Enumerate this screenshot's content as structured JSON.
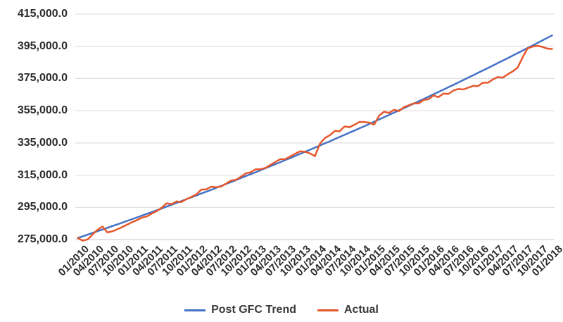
{
  "chart_data": {
    "type": "line",
    "title": "",
    "xlabel": "",
    "ylabel": "",
    "grid": {
      "horizontal": true,
      "color": "#D9D9D9",
      "axis_line_color": "#C6C6C6"
    },
    "legend": {
      "position": "bottom",
      "entries": [
        "Post GFC Trend",
        "Actual"
      ]
    },
    "y_axis": {
      "min": 275000,
      "max": 415000,
      "step": 20000,
      "tick_labels_top_down": [
        "415,000.0",
        "395,000.0",
        "375,000.0",
        "355,000.0",
        "335,000.0",
        "315,000.0",
        "295,000.0",
        "275,000.0"
      ]
    },
    "x_axis": {
      "months_per_tick": 3,
      "tick_labels": [
        "01/2010",
        "04/2010",
        "07/2010",
        "10/2010",
        "01/2011",
        "04/2011",
        "07/2011",
        "10/2011",
        "01/2012",
        "04/2012",
        "07/2012",
        "10/2012",
        "01/2013",
        "04/2013",
        "07/2013",
        "10/2013",
        "01/2014",
        "04/2014",
        "07/2014",
        "10/2014",
        "01/2015",
        "04/2015",
        "07/2015",
        "10/2015",
        "01/2016",
        "04/2016",
        "07/2016",
        "10/2016",
        "01/2017",
        "04/2017",
        "07/2017",
        "10/2017",
        "01/2018"
      ]
    },
    "series": [
      {
        "name": "Post GFC Trend",
        "color": "#4472C4",
        "stroke_width": 2.5,
        "values": [
          276000,
          277000,
          278100,
          279100,
          280200,
          281200,
          282300,
          283400,
          284400,
          285500,
          286600,
          287700,
          288800,
          289900,
          291000,
          292100,
          293200,
          294300,
          295500,
          296600,
          297800,
          298900,
          300100,
          301200,
          302400,
          303600,
          304700,
          305900,
          307100,
          308300,
          309500,
          310700,
          311900,
          313200,
          314400,
          315600,
          316800,
          318100,
          319300,
          320600,
          321800,
          323100,
          324400,
          325600,
          326900,
          328200,
          329500,
          330800,
          332100,
          333400,
          334700,
          336000,
          337400,
          338700,
          340000,
          341400,
          342700,
          344100,
          345400,
          346800,
          348200,
          349600,
          351000,
          352400,
          353800,
          355200,
          356600,
          358000,
          359400,
          360900,
          362300,
          363700,
          365200,
          366600,
          368100,
          369600,
          371000,
          372500,
          374000,
          375500,
          377000,
          378500,
          380000,
          381500,
          383000,
          384600,
          386100,
          387600,
          389200,
          390700,
          392300,
          393900,
          395400,
          397000,
          398600,
          400200,
          401800
        ]
      },
      {
        "name": "Actual",
        "color": "#E6582C",
        "stroke_width": 2.5,
        "values": [
          276000,
          274300,
          275100,
          278200,
          281100,
          283100,
          279400,
          280100,
          281400,
          282800,
          284300,
          285800,
          287100,
          288600,
          289400,
          291200,
          292700,
          294800,
          297500,
          297000,
          298700,
          298300,
          300100,
          301500,
          303000,
          306000,
          306200,
          307800,
          307500,
          307900,
          309700,
          311600,
          312100,
          314000,
          316100,
          316800,
          318600,
          318700,
          319500,
          321400,
          323200,
          324900,
          325000,
          326600,
          328300,
          329800,
          329500,
          328500,
          326800,
          334400,
          338000,
          339800,
          342400,
          342300,
          345200,
          344800,
          346300,
          348000,
          348000,
          347600,
          346400,
          352000,
          354400,
          353600,
          355600,
          354800,
          357200,
          358400,
          359600,
          359500,
          361700,
          362100,
          364500,
          363400,
          365700,
          365400,
          367500,
          368500,
          368200,
          369300,
          370400,
          370300,
          372400,
          372400,
          374400,
          375900,
          375500,
          377600,
          379400,
          381600,
          387900,
          393600,
          394800,
          395300,
          394700,
          393600,
          393300
        ]
      }
    ]
  }
}
